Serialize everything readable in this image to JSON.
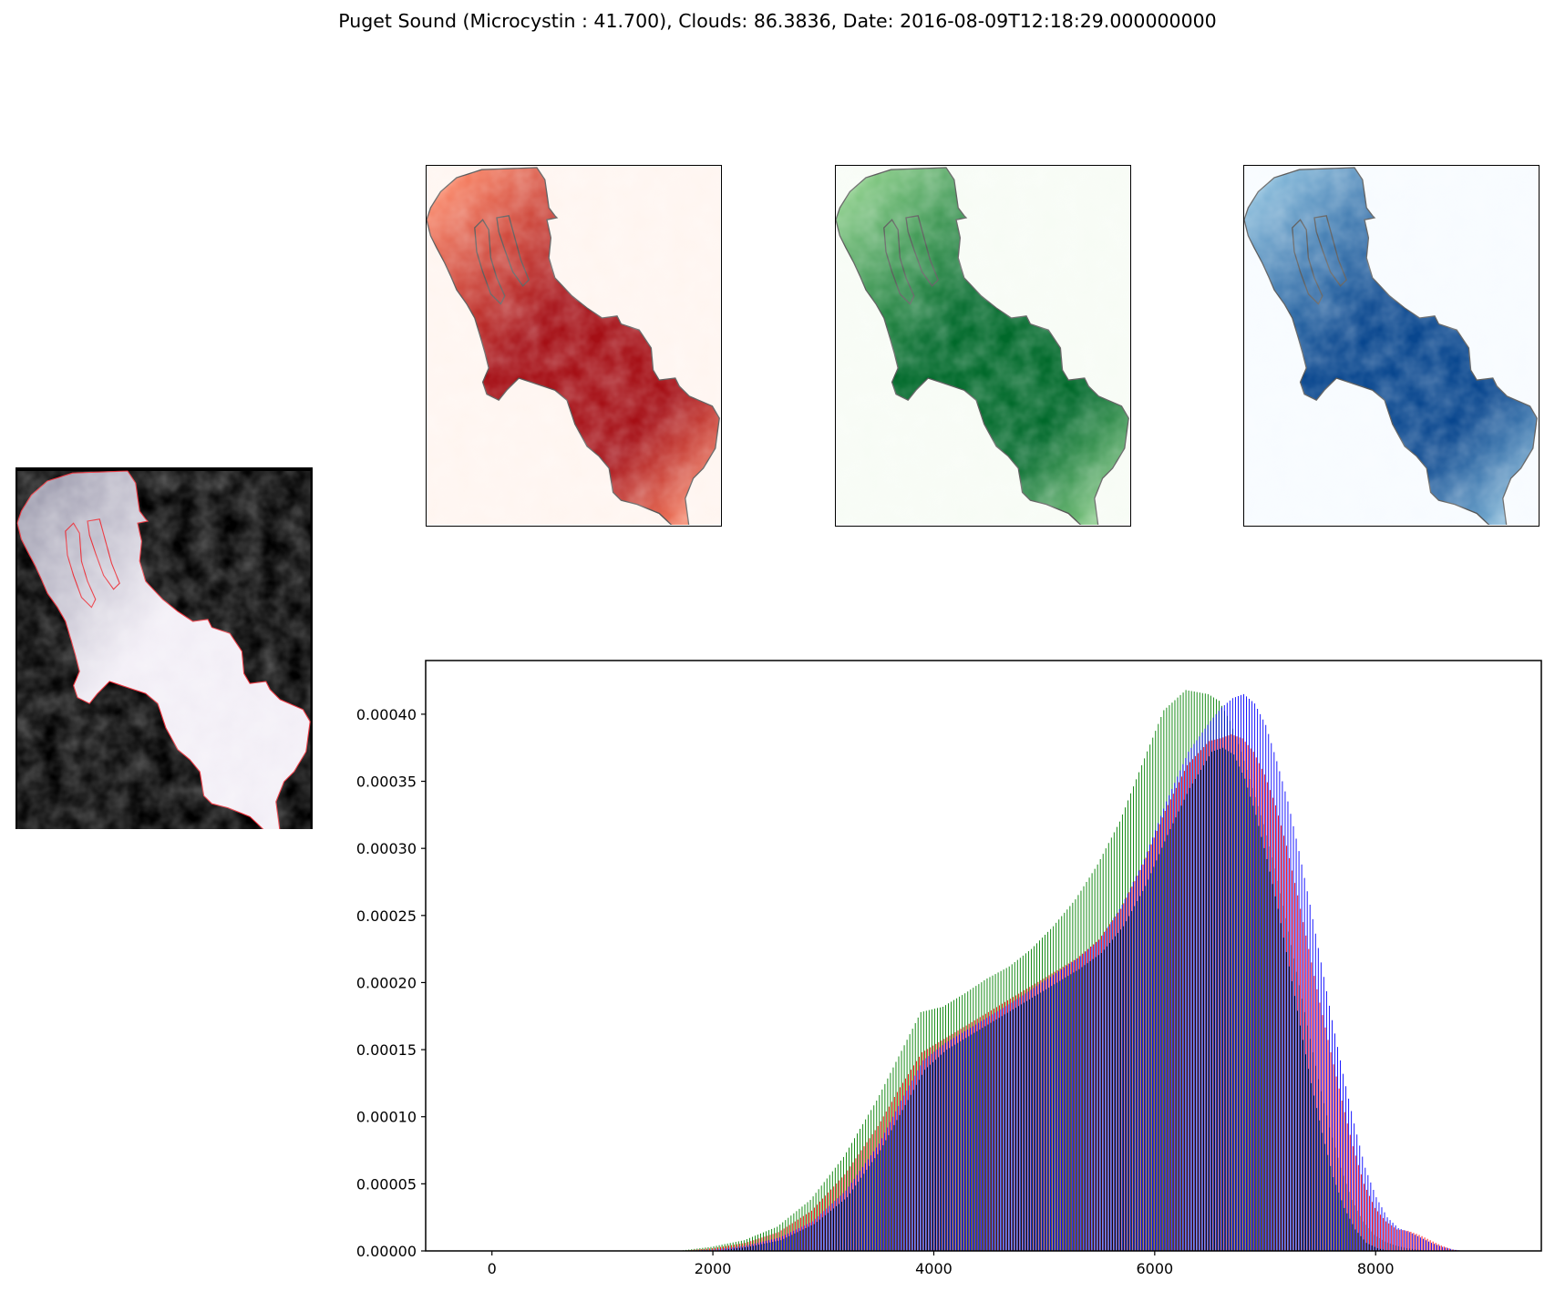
{
  "title": "Puget Sound (Microcystin : 41.700), Clouds: 86.3836, Date: 2016-08-09T12:18:29.000000000",
  "thumbnails": [
    {
      "name": "true-color-thumbnail",
      "background": "#000000",
      "fill_light": "#f2eef6",
      "fill_dark": "#8f8ea2",
      "outline": "#e8202a"
    },
    {
      "name": "red-band-thumbnail",
      "background": "#fff5f0",
      "fill_light": "#fc8a6a",
      "fill_dark": "#a50f15",
      "outline": "#555555"
    },
    {
      "name": "green-band-thumbnail",
      "background": "#f7fcf5",
      "fill_light": "#8ed08b",
      "fill_dark": "#00692a",
      "outline": "#555555"
    },
    {
      "name": "blue-band-thumbnail",
      "background": "#f7fbff",
      "fill_light": "#8cbfdd",
      "fill_dark": "#08468e",
      "outline": "#555555"
    }
  ],
  "chart_data": {
    "type": "bar",
    "title": "",
    "xlabel": "",
    "ylabel": "",
    "xlim": [
      -600,
      9500
    ],
    "ylim": [
      0,
      0.00044
    ],
    "grid": false,
    "xticks": [
      0,
      2000,
      4000,
      6000,
      8000
    ],
    "yticks": [
      "0.00000",
      "0.00005",
      "0.00010",
      "0.00015",
      "0.00020",
      "0.00025",
      "0.00030",
      "0.00035",
      "0.00040"
    ],
    "bin_centers": [
      1700,
      2000,
      2300,
      2600,
      2900,
      3200,
      3500,
      3700,
      3900,
      4100,
      4300,
      4500,
      4700,
      4900,
      5100,
      5300,
      5500,
      5700,
      5900,
      6100,
      6300,
      6500,
      6600,
      6700,
      6800,
      6900,
      7000,
      7100,
      7200,
      7300,
      7400,
      7500,
      7600,
      7700,
      7800,
      7900,
      8000,
      8100,
      8200,
      8300,
      8400,
      8500,
      8600,
      8700,
      8800,
      8900,
      9000
    ],
    "series": [
      {
        "color": "#008000",
        "values": [
          0.0,
          3e-06,
          8e-06,
          1.8e-05,
          3.8e-05,
          7e-05,
          0.000112,
          0.000145,
          0.000178,
          0.000182,
          0.000192,
          0.000203,
          0.000212,
          0.000225,
          0.000242,
          0.000262,
          0.000288,
          0.00032,
          0.000362,
          0.000403,
          0.000418,
          0.000415,
          0.00041,
          0.000395,
          0.000372,
          0.000345,
          0.000318,
          0.000285,
          0.000248,
          0.000208,
          0.000168,
          0.000128,
          9.2e-05,
          6.2e-05,
          3.8e-05,
          2.2e-05,
          1.2e-05,
          7e-06,
          4e-06,
          2e-06,
          1e-06,
          0.0,
          0.0,
          0.0,
          0.0,
          0.0,
          0.0
        ]
      },
      {
        "color": "#ff0000",
        "values": [
          0.0,
          2e-06,
          6e-06,
          1.4e-05,
          3e-05,
          5.7e-05,
          9.3e-05,
          0.000122,
          0.000148,
          0.000158,
          0.000168,
          0.000178,
          0.000188,
          0.000198,
          0.000208,
          0.000218,
          0.000232,
          0.000255,
          0.000288,
          0.000328,
          0.000362,
          0.00038,
          0.000382,
          0.000385,
          0.000382,
          0.000372,
          0.000355,
          0.000332,
          0.000302,
          0.000265,
          0.000225,
          0.000185,
          0.000148,
          0.000112,
          7.8e-05,
          5e-05,
          3.2e-05,
          2.2e-05,
          1.6e-05,
          1.5e-05,
          1.2e-05,
          8e-06,
          4e-06,
          1e-06,
          0.0,
          0.0,
          0.0
        ]
      },
      {
        "color": "#0000ff",
        "values": [
          0.0,
          1e-06,
          4e-06,
          1e-05,
          2.2e-05,
          4.5e-05,
          8e-05,
          0.000112,
          0.000142,
          0.000155,
          0.000165,
          0.000175,
          0.000185,
          0.000196,
          0.000207,
          0.000218,
          0.000232,
          0.000258,
          0.000292,
          0.000335,
          0.000372,
          0.000395,
          0.000405,
          0.000412,
          0.000415,
          0.000408,
          0.000392,
          0.000365,
          0.000335,
          0.000298,
          0.000258,
          0.000215,
          0.000172,
          0.000132,
          9.5e-05,
          6.2e-05,
          4e-05,
          2.5e-05,
          1.7e-05,
          1.4e-05,
          1e-05,
          6e-06,
          3e-06,
          1e-06,
          0.0,
          0.0,
          0.0
        ]
      },
      {
        "color": "#000000",
        "values": [
          0.0,
          0.0,
          3e-06,
          8e-06,
          2e-05,
          4e-05,
          7.5e-05,
          0.000105,
          0.000135,
          0.00015,
          0.00016,
          0.00017,
          0.00018,
          0.00019,
          0.0002,
          0.00021,
          0.000222,
          0.000242,
          0.000272,
          0.00031,
          0.000345,
          0.000372,
          0.000375,
          0.00037,
          0.000352,
          0.000325,
          0.000292,
          0.000255,
          0.000212,
          0.000168,
          0.000125,
          8.8e-05,
          5.5e-05,
          3.2e-05,
          1.6e-05,
          6e-06,
          2e-06,
          0.0,
          0.0,
          0.0,
          0.0,
          0.0,
          0.0,
          0.0,
          0.0,
          0.0,
          0.0
        ]
      }
    ]
  }
}
